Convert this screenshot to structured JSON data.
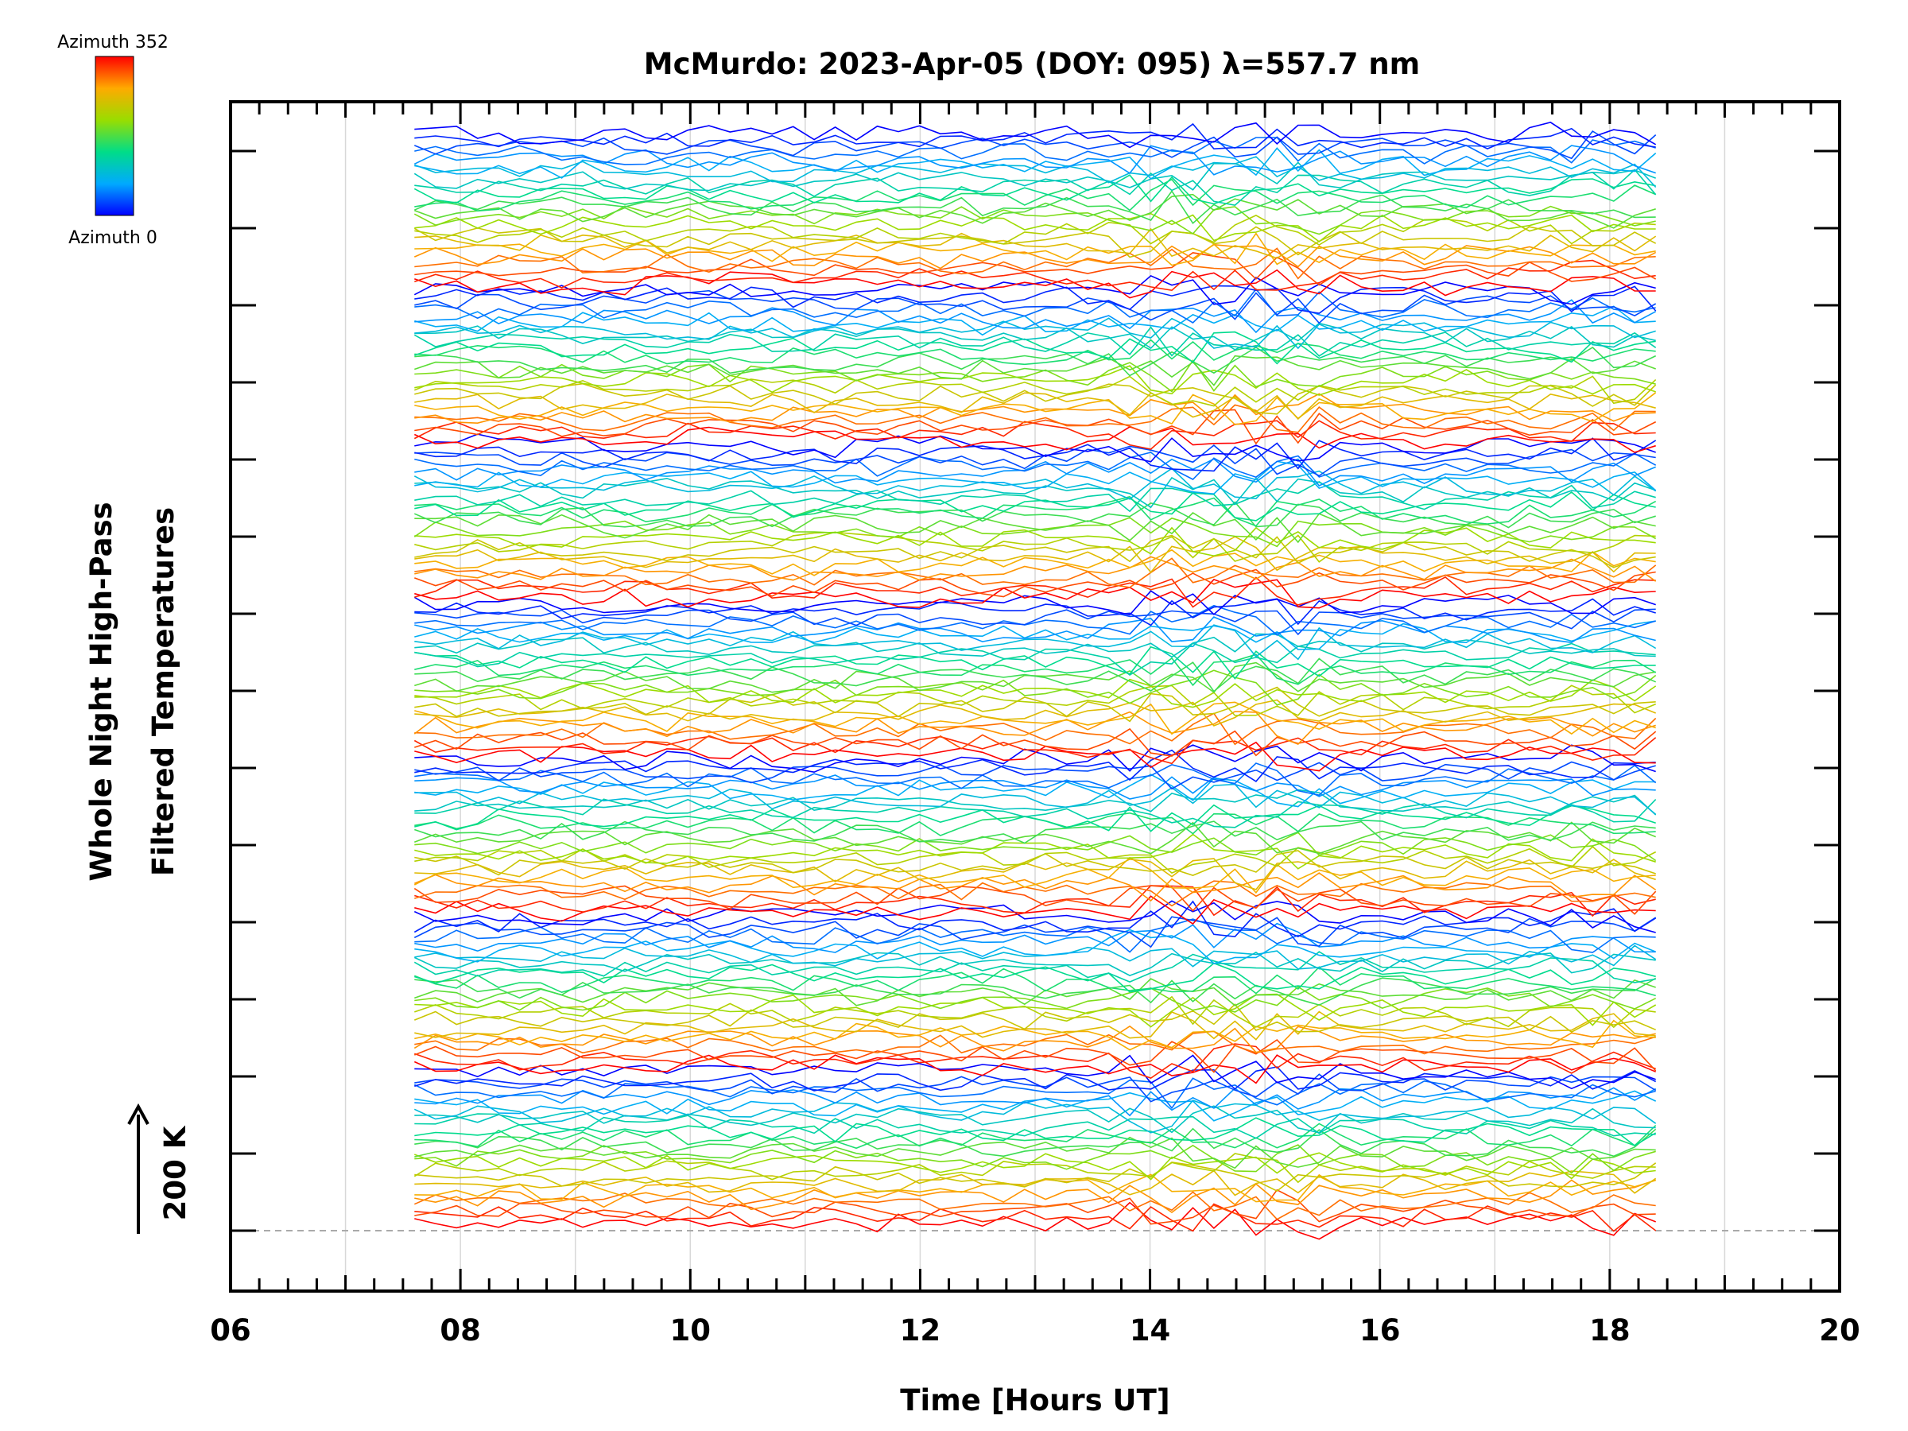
{
  "chart_data": {
    "type": "line",
    "title": "McMurdo: 2023-Apr-05 (DOY: 095) λ=557.7 nm",
    "xlabel": "Time [Hours UT]",
    "ylabel_line1": "Whole Night High-Pass",
    "ylabel_line2": "Filtered Temperatures",
    "scale_label": "200 K",
    "xlim": [
      6,
      20
    ],
    "x_tick_labels": [
      "06",
      "08",
      "10",
      "12",
      "14",
      "16",
      "18",
      "20"
    ],
    "x_tick_values": [
      6,
      8,
      10,
      12,
      14,
      16,
      18,
      20
    ],
    "x_minor_step": 0.25,
    "y_major_ticks": 15,
    "data_time_range": [
      7.6,
      18.4
    ],
    "sample_count": 60,
    "azimuth_cycles": 7,
    "traces_per_cycle": 24,
    "colorbar": {
      "top_label": "Azimuth 352",
      "bottom_label": "Azimuth 0",
      "min": 0,
      "max": 352
    },
    "disturbance_windows": [
      {
        "start": 13.8,
        "end": 15.6,
        "amplitude": 2.2
      },
      {
        "start": 17.5,
        "end": 18.4,
        "amplitude": 1.7
      }
    ],
    "colors": {
      "axis": "#000000",
      "grid": "#d8d8d8",
      "baseline": "#aaaaaa"
    }
  }
}
